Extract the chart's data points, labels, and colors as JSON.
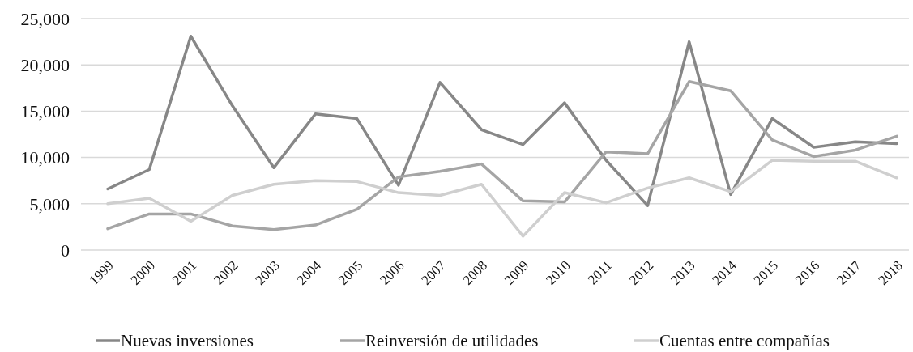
{
  "chart_data": {
    "type": "line",
    "categories": [
      "1999",
      "2000",
      "2001",
      "2002",
      "2003",
      "2004",
      "2005",
      "2006",
      "2007",
      "2008",
      "2009",
      "2010",
      "2011",
      "2012",
      "2013",
      "2014",
      "2015",
      "2016",
      "2017",
      "2018"
    ],
    "series": [
      {
        "name": "Nuevas inversiones",
        "color": "#878787",
        "values": [
          6600,
          8700,
          23100,
          15600,
          8900,
          14700,
          14200,
          7000,
          18100,
          13000,
          11400,
          15900,
          9700,
          4800,
          22500,
          6000,
          14200,
          11100,
          11700,
          11500
        ]
      },
      {
        "name": "Reinversión de utilidades",
        "color": "#a5a5a5",
        "values": [
          2300,
          3900,
          3900,
          2600,
          2200,
          2700,
          4400,
          7900,
          8500,
          9300,
          5300,
          5200,
          10600,
          10400,
          18200,
          17200,
          11900,
          10100,
          10800,
          12300
        ]
      },
      {
        "name": "Cuentas entre compañías",
        "color": "#cfcfcf",
        "values": [
          5000,
          5600,
          3100,
          5900,
          7100,
          7500,
          7400,
          6200,
          5900,
          7100,
          1500,
          6200,
          5100,
          6700,
          7800,
          6300,
          9700,
          9600,
          9600,
          7800
        ]
      }
    ],
    "ylim": [
      0,
      25000
    ],
    "yticks": [
      {
        "value": 0,
        "label": "0"
      },
      {
        "value": 5000,
        "label": "5,000"
      },
      {
        "value": 10000,
        "label": "10,000"
      },
      {
        "value": 15000,
        "label": "15,000"
      },
      {
        "value": 20000,
        "label": "20,000"
      },
      {
        "value": 25000,
        "label": "25,000"
      }
    ],
    "grid": "y",
    "legend": "bottom",
    "marker": "none",
    "line_style": "solid"
  }
}
